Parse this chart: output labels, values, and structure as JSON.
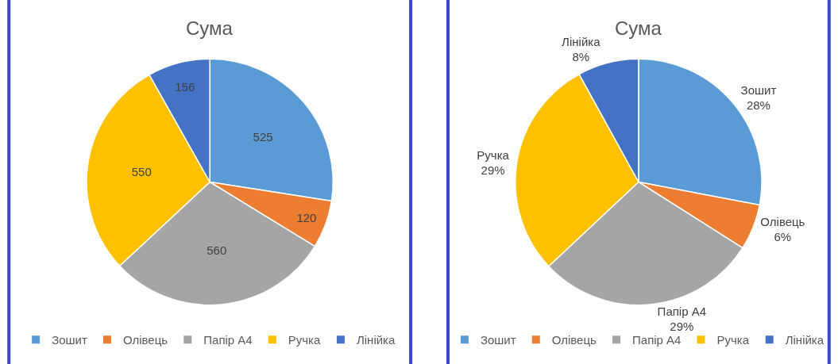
{
  "chart_data": [
    {
      "type": "pie",
      "title": "Сума",
      "categories": [
        "Зошит",
        "Олівець",
        "Папір А4",
        "Ручка",
        "Лінійка"
      ],
      "values": [
        525,
        120,
        560,
        550,
        156
      ],
      "colors": [
        "#5b9bd5",
        "#ed7d31",
        "#a5a5a5",
        "#ffc000",
        "#4472c4"
      ],
      "data_labels": true,
      "legend": "bottom"
    },
    {
      "type": "pie",
      "title": "Сума",
      "categories": [
        "Зошит",
        "Олівець",
        "Папір А4",
        "Ручка",
        "Лінійка"
      ],
      "values": [
        28,
        6,
        29,
        29,
        8
      ],
      "colors": [
        "#5b9bd5",
        "#ed7d31",
        "#a5a5a5",
        "#ffc000",
        "#4472c4"
      ],
      "value_labels": [
        "28%",
        "6%",
        "29%",
        "29%",
        "8%"
      ],
      "legend": "bottom"
    }
  ]
}
